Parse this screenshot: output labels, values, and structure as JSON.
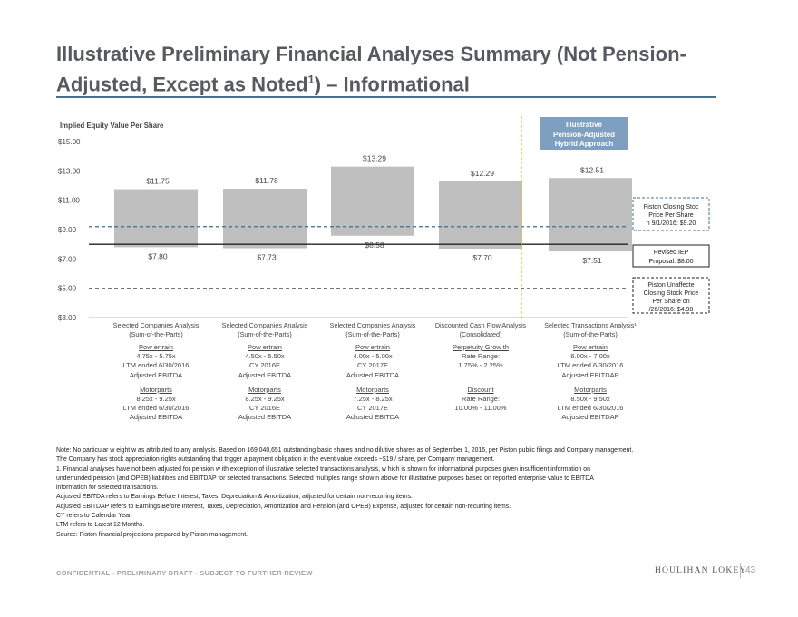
{
  "page": {
    "title_main": "Illustrative Preliminary Financial Analyses Summary (Not Pension-Adjusted, Except as Noted",
    "title_sup": "1",
    "title_end": ") – Informational",
    "confidential": "CONFIDENTIAL - PRELIMINARY DRAFT - SUBJECT TO FURTHER REVIEW",
    "logo": "HOULIHAN LOKEY",
    "page_number": "43"
  },
  "chart_data": {
    "type": "floating-bar",
    "ylabel": "Implied Equity Value Per Share",
    "ylim": [
      3,
      15
    ],
    "yticks": [
      "$15.00",
      "$13.00",
      "$11.00",
      "$9.00",
      "$7.00",
      "$5.00",
      "$3.00"
    ],
    "ytick_values": [
      15,
      13,
      11,
      9,
      7,
      5,
      3
    ],
    "categories": [
      "Selected Companies Analysis|(Sum-of-the-Parts)",
      "Selected Companies Analysis|(Sum-of-the-Parts)",
      "Selected Companies Analysis|(Sum-of-the-Parts)",
      "Discounted Cash Flow Analysis|(Consolidated)",
      "Selected Transactions Analysis¹|(Sum-of-the-Parts)"
    ],
    "lows": [
      7.8,
      7.73,
      8.58,
      7.7,
      7.51
    ],
    "highs": [
      11.75,
      11.78,
      13.29,
      12.29,
      12.51
    ],
    "low_labels": [
      "$7.80",
      "$7.73",
      "$8.58",
      "$7.70",
      "$7.51"
    ],
    "high_labels": [
      "$11.75",
      "$11.78",
      "$13.29",
      "$12.29",
      "$12.51"
    ],
    "reference_lines": [
      {
        "value": 9.2,
        "style": "dashed",
        "color": "#3a6f94",
        "label": "Piston Closing Stock Price Per Share on 9/1/2016: $9.20"
      },
      {
        "value": 8.0,
        "style": "solid",
        "color": "#222222",
        "label": "Revised IEP Proposal: $8.00"
      },
      {
        "value": 4.98,
        "style": "dashed",
        "color": "#222222",
        "label": "Piston Unaffected Closing Stock Price Per Share on 2/26/2016: $4.98"
      }
    ],
    "annotation_box": "Illustrative Pension-Adjusted / Hybrid Approach",
    "colors": {
      "bar": "#bfbfbf",
      "accent_box": "#7f9fc0",
      "divider": "#f0b323"
    }
  },
  "criteria": [
    {
      "a_hdr": "Pow ertrain",
      "a1": "4.75x - 5.75x",
      "a2": "LTM ended 6/30/2016",
      "a3": "Adjusted EBITDA",
      "b_hdr": "Motorparts",
      "b1": "8.25x - 9.25x",
      "b2": "LTM ended 6/30/2016",
      "b3": "Adjusted EBITDA"
    },
    {
      "a_hdr": "Pow ertrain",
      "a1": "4.50x - 5.50x",
      "a2": "CY 2016E",
      "a3": "Adjusted EBITDA",
      "b_hdr": "Motorparts",
      "b1": "8.25x - 9.25x",
      "b2": "CY 2016E",
      "b3": "Adjusted EBITDA"
    },
    {
      "a_hdr": "Pow ertrain",
      "a1": "4.00x - 5.00x",
      "a2": "CY 2017E",
      "a3": "Adjusted EBITDA",
      "b_hdr": "Motorparts",
      "b1": "7.25x - 8.25x",
      "b2": "CY 2017E",
      "b3": "Adjusted EBITDA"
    },
    {
      "a_hdr": "Perpetuity Grow th",
      "a1": "Rate Range:",
      "a2": "1.75% - 2.25%",
      "a3": "",
      "b_hdr": "Discount",
      "b1": "Rate Range:",
      "b2": "10.00% - 11.00%",
      "b3": ""
    },
    {
      "a_hdr": "Pow ertrain",
      "a1": "6.00x - 7.00x",
      "a2": "LTM ended 6/30/2016",
      "a3": "Adjusted EBITDAP",
      "b_hdr": "Motorparts",
      "b1": "8.50x - 9.50x",
      "b2": "LTM ended 6/30/2016",
      "b3": "Adjusted EBITDAP"
    }
  ],
  "notes": [
    "Note: No particular w eight w as attributed to any analysis. Based on 169,040,651 outstanding basic shares and no dilutive shares as of September 1, 2016, per Piston public filings and Company management.",
    "The Company has stock appreciation rights outstanding that trigger a payment obligation in the event value exceeds ~$19 / share, per Company management.",
    "1. Financial analyses have not been adjusted for pension w ith exception of illustrative selected transactions analysis, w hich is show n for informational purposes given insufficient information on",
    "underfunded pension (and OPEB) liabilities and EBITDAP for selected transactions. Selected multiples range show n above for illustrative purposes based on reported enterprise value to EBITDA",
    "information for selected transactions.",
    "Adjusted EBITDA refers to Earnings Before Interest, Taxes, Depreciation & Amortization, adjusted for certain non-recurring items.",
    "Adjusted EBITDAP refers to Earnings Before Interest, Taxes, Depreciation, Amortization and Pension (and OPEB) Expense, adjusted for certain non-recurring items.",
    "CY refers to Calendar Year.",
    "LTM refers to Latest 12 Months.",
    "Source: Piston financial projections prepared by Piston management."
  ]
}
